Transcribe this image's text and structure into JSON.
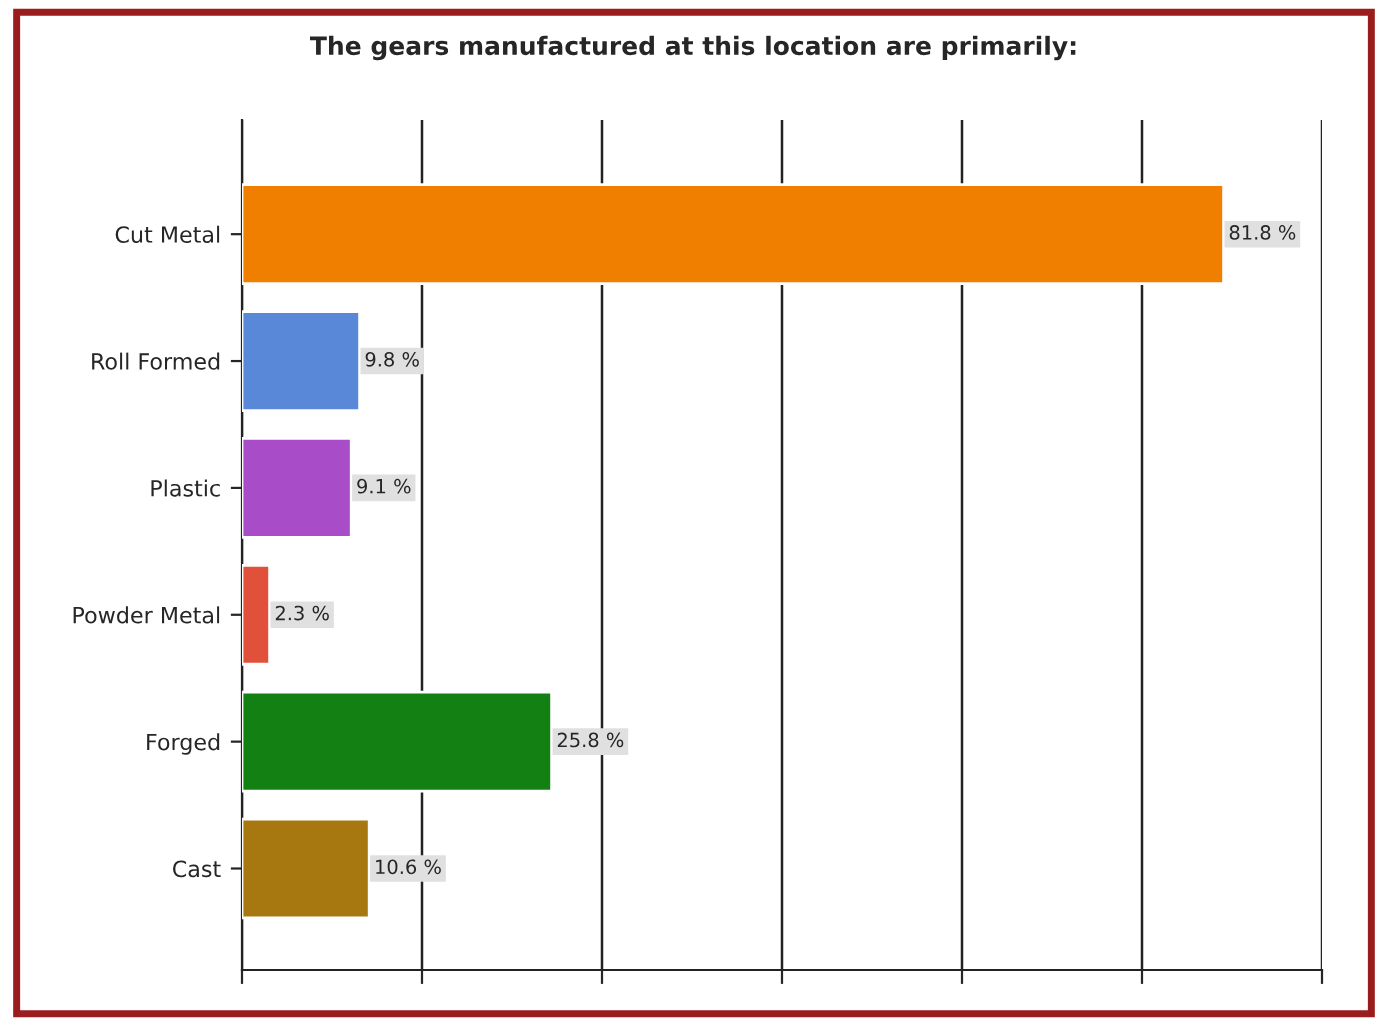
{
  "chart_data": {
    "type": "bar",
    "orientation": "horizontal",
    "title": "The gears manufactured at this location are primarily:",
    "categories": [
      "Cut Metal",
      "Roll Formed",
      "Plastic",
      "Powder Metal",
      "Forged",
      "Cast"
    ],
    "values": [
      81.8,
      9.8,
      9.1,
      2.3,
      25.8,
      10.6
    ],
    "colors": [
      "#f07f00",
      "#5a88d8",
      "#a84cc8",
      "#e0503a",
      "#138013",
      "#a87810"
    ],
    "value_labels": [
      "81.8 %",
      "9.8 %",
      "9.1 %",
      "2.3 %",
      "25.8 %",
      "10.6 %"
    ],
    "xlim": [
      0,
      90
    ],
    "xticks": [
      {
        "value": 0,
        "label": null
      },
      {
        "value": 15,
        "label": null
      },
      {
        "value": 30,
        "label": null
      },
      {
        "value": 45,
        "label": null
      },
      {
        "value": 60,
        "label": null
      },
      {
        "value": 75,
        "label": null
      },
      {
        "value": 90,
        "label": null
      }
    ],
    "tick_labels": "y",
    "grid": "x"
  }
}
